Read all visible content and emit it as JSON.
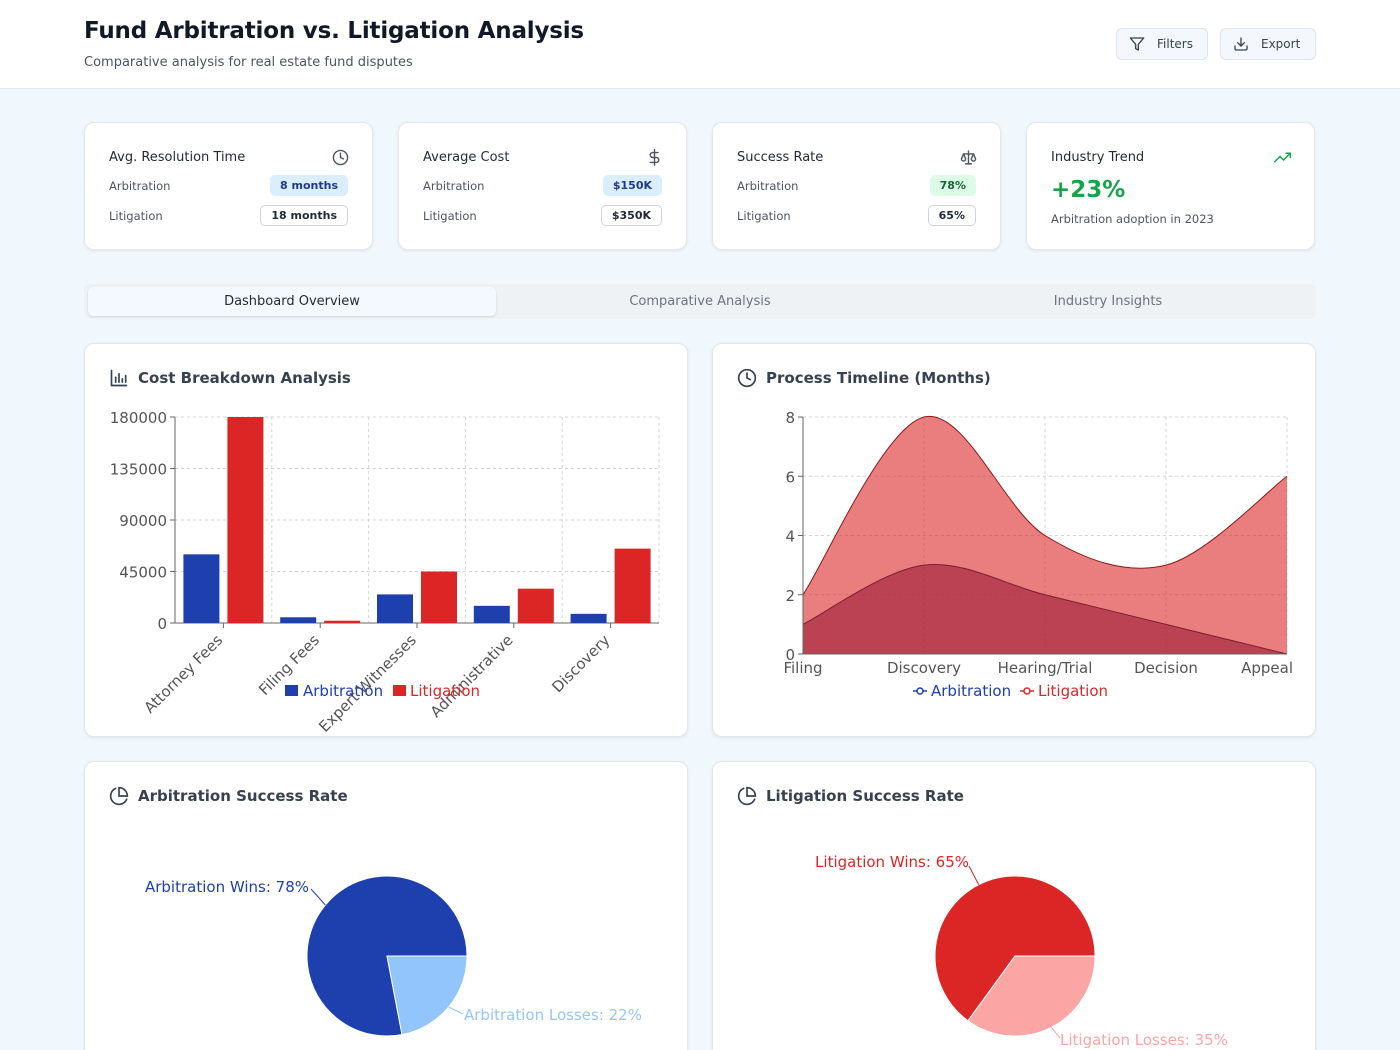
{
  "header": {
    "title": "Fund Arbitration vs. Litigation Analysis",
    "subtitle": "Comparative analysis for real estate fund disputes",
    "filters_label": "Filters",
    "export_label": "Export"
  },
  "stats": {
    "resolution": {
      "title": "Avg. Resolution Time",
      "arb_label": "Arbitration",
      "arb_value": "8 months",
      "lit_label": "Litigation",
      "lit_value": "18 months"
    },
    "cost": {
      "title": "Average Cost",
      "arb_label": "Arbitration",
      "arb_value": "$150K",
      "lit_label": "Litigation",
      "lit_value": "$350K"
    },
    "success": {
      "title": "Success Rate",
      "arb_label": "Arbitration",
      "arb_value": "78%",
      "lit_label": "Litigation",
      "lit_value": "65%"
    },
    "trend": {
      "title": "Industry Trend",
      "value": "+23%",
      "desc": "Arbitration adoption in 2023"
    }
  },
  "tabs": [
    {
      "label": "Dashboard Overview"
    },
    {
      "label": "Comparative Analysis"
    },
    {
      "label": "Industry Insights"
    }
  ],
  "colors": {
    "arbitration": "#1e40af",
    "litigation": "#dc2626",
    "arbitration_light": "#93c5fd",
    "litigation_light": "#fca5a5",
    "trend_green": "#16a34a"
  },
  "panels": {
    "cost": {
      "title": "Cost Breakdown Analysis"
    },
    "timeline": {
      "title": "Process Timeline (Months)"
    },
    "arb_success": {
      "title": "Arbitration Success Rate"
    },
    "lit_success": {
      "title": "Litigation Success Rate"
    }
  },
  "chart_data": [
    {
      "type": "bar",
      "categories": [
        "Attorney Fees",
        "Filing Fees",
        "Expert Witnesses",
        "Administrative",
        "Discovery"
      ],
      "series": [
        {
          "name": "Arbitration",
          "values": [
            60000,
            5000,
            25000,
            15000,
            8000
          ]
        },
        {
          "name": "Litigation",
          "values": [
            180000,
            2000,
            45000,
            30000,
            65000
          ]
        }
      ],
      "yticks": [
        "180000",
        "135000",
        "90000",
        "45000",
        "0"
      ],
      "ylim": [
        0,
        180000
      ],
      "grid": true,
      "legend": "bottom"
    },
    {
      "type": "area",
      "categories": [
        "Filing",
        "Discovery",
        "Hearing/Trial",
        "Decision",
        "Appeal"
      ],
      "series": [
        {
          "name": "Arbitration",
          "values": [
            1,
            3,
            2,
            1,
            0
          ]
        },
        {
          "name": "Litigation",
          "values": [
            2,
            8,
            4,
            3,
            6
          ]
        }
      ],
      "yticks": [
        "8",
        "6",
        "4",
        "2",
        "0"
      ],
      "ylim": [
        0,
        8
      ],
      "grid": true,
      "legend": "bottom"
    },
    {
      "type": "pie",
      "slices": [
        {
          "label": "Arbitration Wins: 78%",
          "value": 78
        },
        {
          "label": "Arbitration Losses: 22%",
          "value": 22
        }
      ]
    },
    {
      "type": "pie",
      "slices": [
        {
          "label": "Litigation Wins: 65%",
          "value": 65
        },
        {
          "label": "Litigation Losses: 35%",
          "value": 35
        }
      ]
    }
  ]
}
